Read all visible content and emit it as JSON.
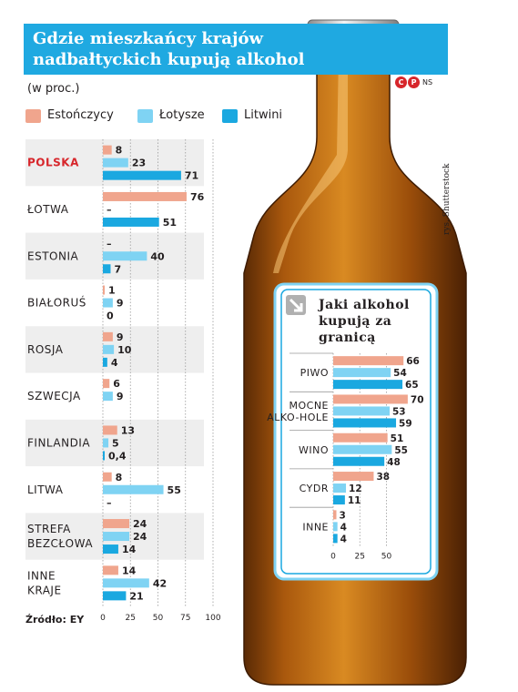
{
  "header": {
    "title": "Gdzie mieszkańcy krajów nadbałtyckich kupują alkohol",
    "unit": "(w proc.)",
    "copyright_icon": "copyright-cp-icon",
    "copyright_author": "NS"
  },
  "source": "Źródło: EY",
  "credit": "rys. Shutterstock",
  "legend": [
    {
      "label": "Estończycy",
      "color": "#f0a58d"
    },
    {
      "label": "Łotysze",
      "color": "#7fd3f3"
    },
    {
      "label": "Litwini",
      "color": "#1aa8e0"
    }
  ],
  "chart_data": [
    {
      "type": "bar",
      "orientation": "horizontal",
      "categories": [
        "Polska",
        "Łotwa",
        "Estonia",
        "Białoruś",
        "Rosja",
        "Szwecja",
        "Finlandia",
        "Litwa",
        "strefa bezcłowa",
        "inne kraje"
      ],
      "highlight_category": "Polska",
      "series": [
        {
          "name": "Estończycy",
          "values": [
            8,
            76,
            null,
            1,
            9,
            6,
            13,
            8,
            24,
            14
          ],
          "labels": [
            "8",
            "76",
            "–",
            "1",
            "9",
            "6",
            "13",
            "8",
            "24",
            "14"
          ],
          "color": "#f0a58d"
        },
        {
          "name": "Łotysze",
          "values": [
            23,
            null,
            40,
            9,
            10,
            9,
            5,
            55,
            24,
            42
          ],
          "labels": [
            "23",
            "–",
            "40",
            "9",
            "10",
            "9",
            "5",
            "55",
            "24",
            "42"
          ],
          "color": "#7fd3f3"
        },
        {
          "name": "Litwini",
          "values": [
            71,
            51,
            7,
            0,
            4,
            null,
            0.4,
            null,
            14,
            21
          ],
          "labels": [
            "71",
            "51",
            "7",
            "0",
            "4",
            "",
            "0,4",
            "–",
            "14",
            "21"
          ],
          "color": "#1aa8e0"
        }
      ],
      "xlim": [
        0,
        100
      ],
      "xticks": [
        "0",
        "25",
        "50",
        "75",
        "100"
      ],
      "grid": true
    },
    {
      "type": "bar",
      "orientation": "horizontal",
      "title": "Jaki alkohol kupują za granicą",
      "categories": [
        "Piwo",
        "Mocne alko-hole",
        "Wino",
        "Cydr",
        "Inne"
      ],
      "series": [
        {
          "name": "Estończycy",
          "values": [
            66,
            70,
            51,
            38,
            3
          ],
          "labels": [
            "66",
            "70",
            "51",
            "38",
            "3"
          ],
          "color": "#f0a58d"
        },
        {
          "name": "Łotysze",
          "values": [
            54,
            53,
            55,
            12,
            4
          ],
          "labels": [
            "54",
            "53",
            "55",
            "12",
            "4"
          ],
          "color": "#7fd3f3"
        },
        {
          "name": "Litwini",
          "values": [
            65,
            59,
            48,
            11,
            4
          ],
          "labels": [
            "65",
            "59",
            "48",
            "11",
            "4"
          ],
          "color": "#1aa8e0"
        }
      ],
      "xlim": [
        0,
        75
      ],
      "xticks": [
        "0",
        "25",
        "50"
      ],
      "grid": true
    }
  ]
}
